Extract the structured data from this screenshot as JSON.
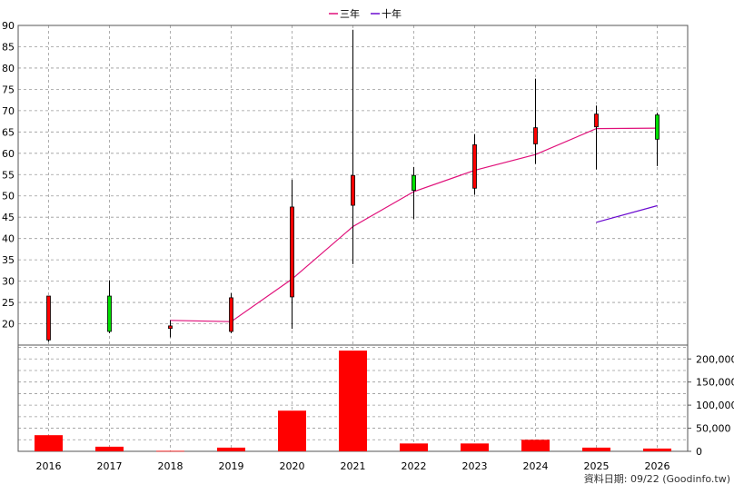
{
  "chart_data": {
    "type": "candlestick-with-volume",
    "legend": [
      {
        "name": "三年",
        "color": "#e0107a"
      },
      {
        "name": "十年",
        "color": "#6a0ad0"
      }
    ],
    "years": [
      "2016",
      "2017",
      "2018",
      "2019",
      "2020",
      "2021",
      "2022",
      "2023",
      "2024",
      "2025",
      "2026"
    ],
    "price_axis": {
      "min": 15,
      "max": 90,
      "ticks": [
        20,
        25,
        30,
        35,
        40,
        45,
        50,
        55,
        60,
        65,
        70,
        75,
        80,
        85,
        90
      ]
    },
    "candles": [
      {
        "year": "2016",
        "open": 16.2,
        "high": 26.5,
        "low": 15.8,
        "close": 26.5,
        "color": "#ff0000"
      },
      {
        "year": "2017",
        "open": 26.5,
        "high": 30.2,
        "low": 17.8,
        "close": 18.2,
        "color": "#00e000"
      },
      {
        "year": "2018",
        "open": 19.5,
        "high": 20.8,
        "low": 16.8,
        "close": 18.9,
        "color": "#ff0000"
      },
      {
        "year": "2019",
        "open": 18.2,
        "high": 27.2,
        "low": 17.8,
        "close": 26.1,
        "color": "#ff0000"
      },
      {
        "year": "2020",
        "open": 26.3,
        "high": 53.8,
        "low": 18.8,
        "close": 47.4,
        "color": "#ff0000"
      },
      {
        "year": "2021",
        "open": 47.8,
        "high": 89.0,
        "low": 34.0,
        "close": 54.8,
        "color": "#ff0000"
      },
      {
        "year": "2022",
        "open": 54.8,
        "high": 56.8,
        "low": 44.5,
        "close": 51.3,
        "color": "#00e000"
      },
      {
        "year": "2023",
        "open": 51.8,
        "high": 64.5,
        "low": 50.3,
        "close": 62.0,
        "color": "#ff0000"
      },
      {
        "year": "2024",
        "open": 62.2,
        "high": 77.5,
        "low": 57.5,
        "close": 66.0,
        "color": "#ff0000"
      },
      {
        "year": "2025",
        "open": 66.2,
        "high": 71.2,
        "low": 56.2,
        "close": 69.2,
        "color": "#ff0000"
      },
      {
        "year": "2026",
        "open": 69.0,
        "high": 69.5,
        "low": 57.0,
        "close": 63.3,
        "color": "#00e000"
      }
    ],
    "series": [
      {
        "name": "三年",
        "color": "#e0107a",
        "values": [
          null,
          null,
          20.8,
          20.5,
          30.5,
          42.8,
          51.0,
          56.0,
          59.7,
          65.8,
          65.9
        ]
      },
      {
        "name": "十年",
        "color": "#6a0ad0",
        "values": [
          null,
          null,
          null,
          null,
          null,
          null,
          null,
          null,
          null,
          43.8,
          47.7
        ]
      }
    ],
    "volume_axis": {
      "min": 0,
      "max": 230000,
      "ticks": [
        0,
        50000,
        100000,
        150000,
        200000
      ],
      "tick_labels": [
        "0",
        "50,000",
        "100,000",
        "150,000",
        "200,000"
      ]
    },
    "volume": [
      35000,
      10000,
      1000,
      8000,
      88000,
      218000,
      17000,
      17000,
      25000,
      8000,
      6000
    ],
    "volume_color": "#ff0000",
    "grid": true
  },
  "footer": {
    "note": "資料日期: 09/22 (Goodinfo.tw)"
  }
}
